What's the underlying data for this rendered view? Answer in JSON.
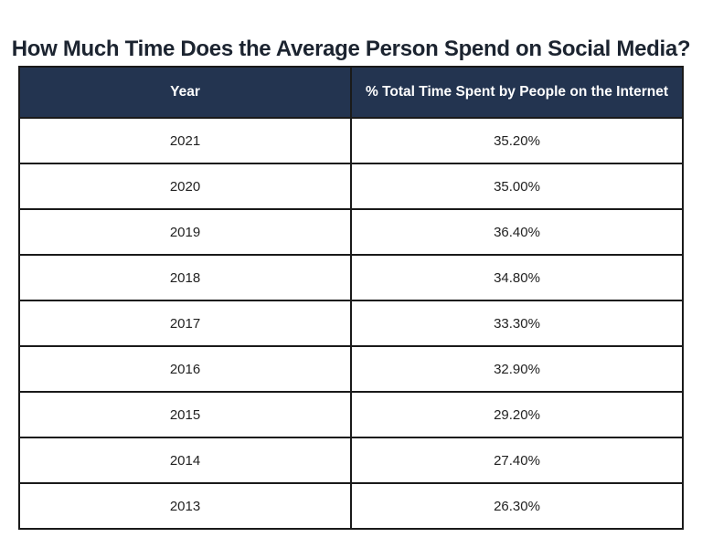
{
  "title": "How Much Time Does the Average Person Spend on Social Media?",
  "colors": {
    "header_bg": "#233450",
    "header_text": "#ffffff",
    "border": "#1a1a1a",
    "title_text": "#1c2430",
    "cell_text": "#222222",
    "background": "#ffffff"
  },
  "chart_data": {
    "type": "table",
    "title": "How Much Time Does the Average Person Spend on Social Media?",
    "columns": [
      "Year",
      "% Total Time Spent by People on the Internet"
    ],
    "rows": [
      [
        "2021",
        "35.20%"
      ],
      [
        "2020",
        "35.00%"
      ],
      [
        "2019",
        "36.40%"
      ],
      [
        "2018",
        "34.80%"
      ],
      [
        "2017",
        "33.30%"
      ],
      [
        "2016",
        "32.90%"
      ],
      [
        "2015",
        "29.20%"
      ],
      [
        "2014",
        "27.40%"
      ],
      [
        "2013",
        "26.30%"
      ]
    ],
    "values_numeric": [
      35.2,
      35.0,
      36.4,
      34.8,
      33.3,
      32.9,
      29.2,
      27.4,
      26.3
    ],
    "layout": {
      "legend": "none",
      "grid": "full-borders",
      "header_style": "dark-navy-band"
    }
  }
}
